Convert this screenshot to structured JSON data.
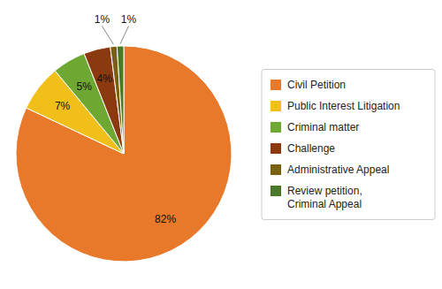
{
  "chart_data": {
    "type": "pie",
    "categories": [
      "Civil Petition",
      "Public Interest Litigation",
      "Criminal matter",
      "Challenge",
      "Administrative Appeal",
      "Review petition,\nCriminal Appeal"
    ],
    "values": [
      82,
      7,
      5,
      4,
      1,
      1
    ],
    "value_labels": [
      "82%",
      "7%",
      "5%",
      "4%",
      "1%",
      "1%"
    ],
    "colors": [
      "#E8782A",
      "#F0BF1A",
      "#6EA832",
      "#8B3A10",
      "#7A6010",
      "#4A7828"
    ],
    "data_labels": true,
    "legend": "right"
  }
}
